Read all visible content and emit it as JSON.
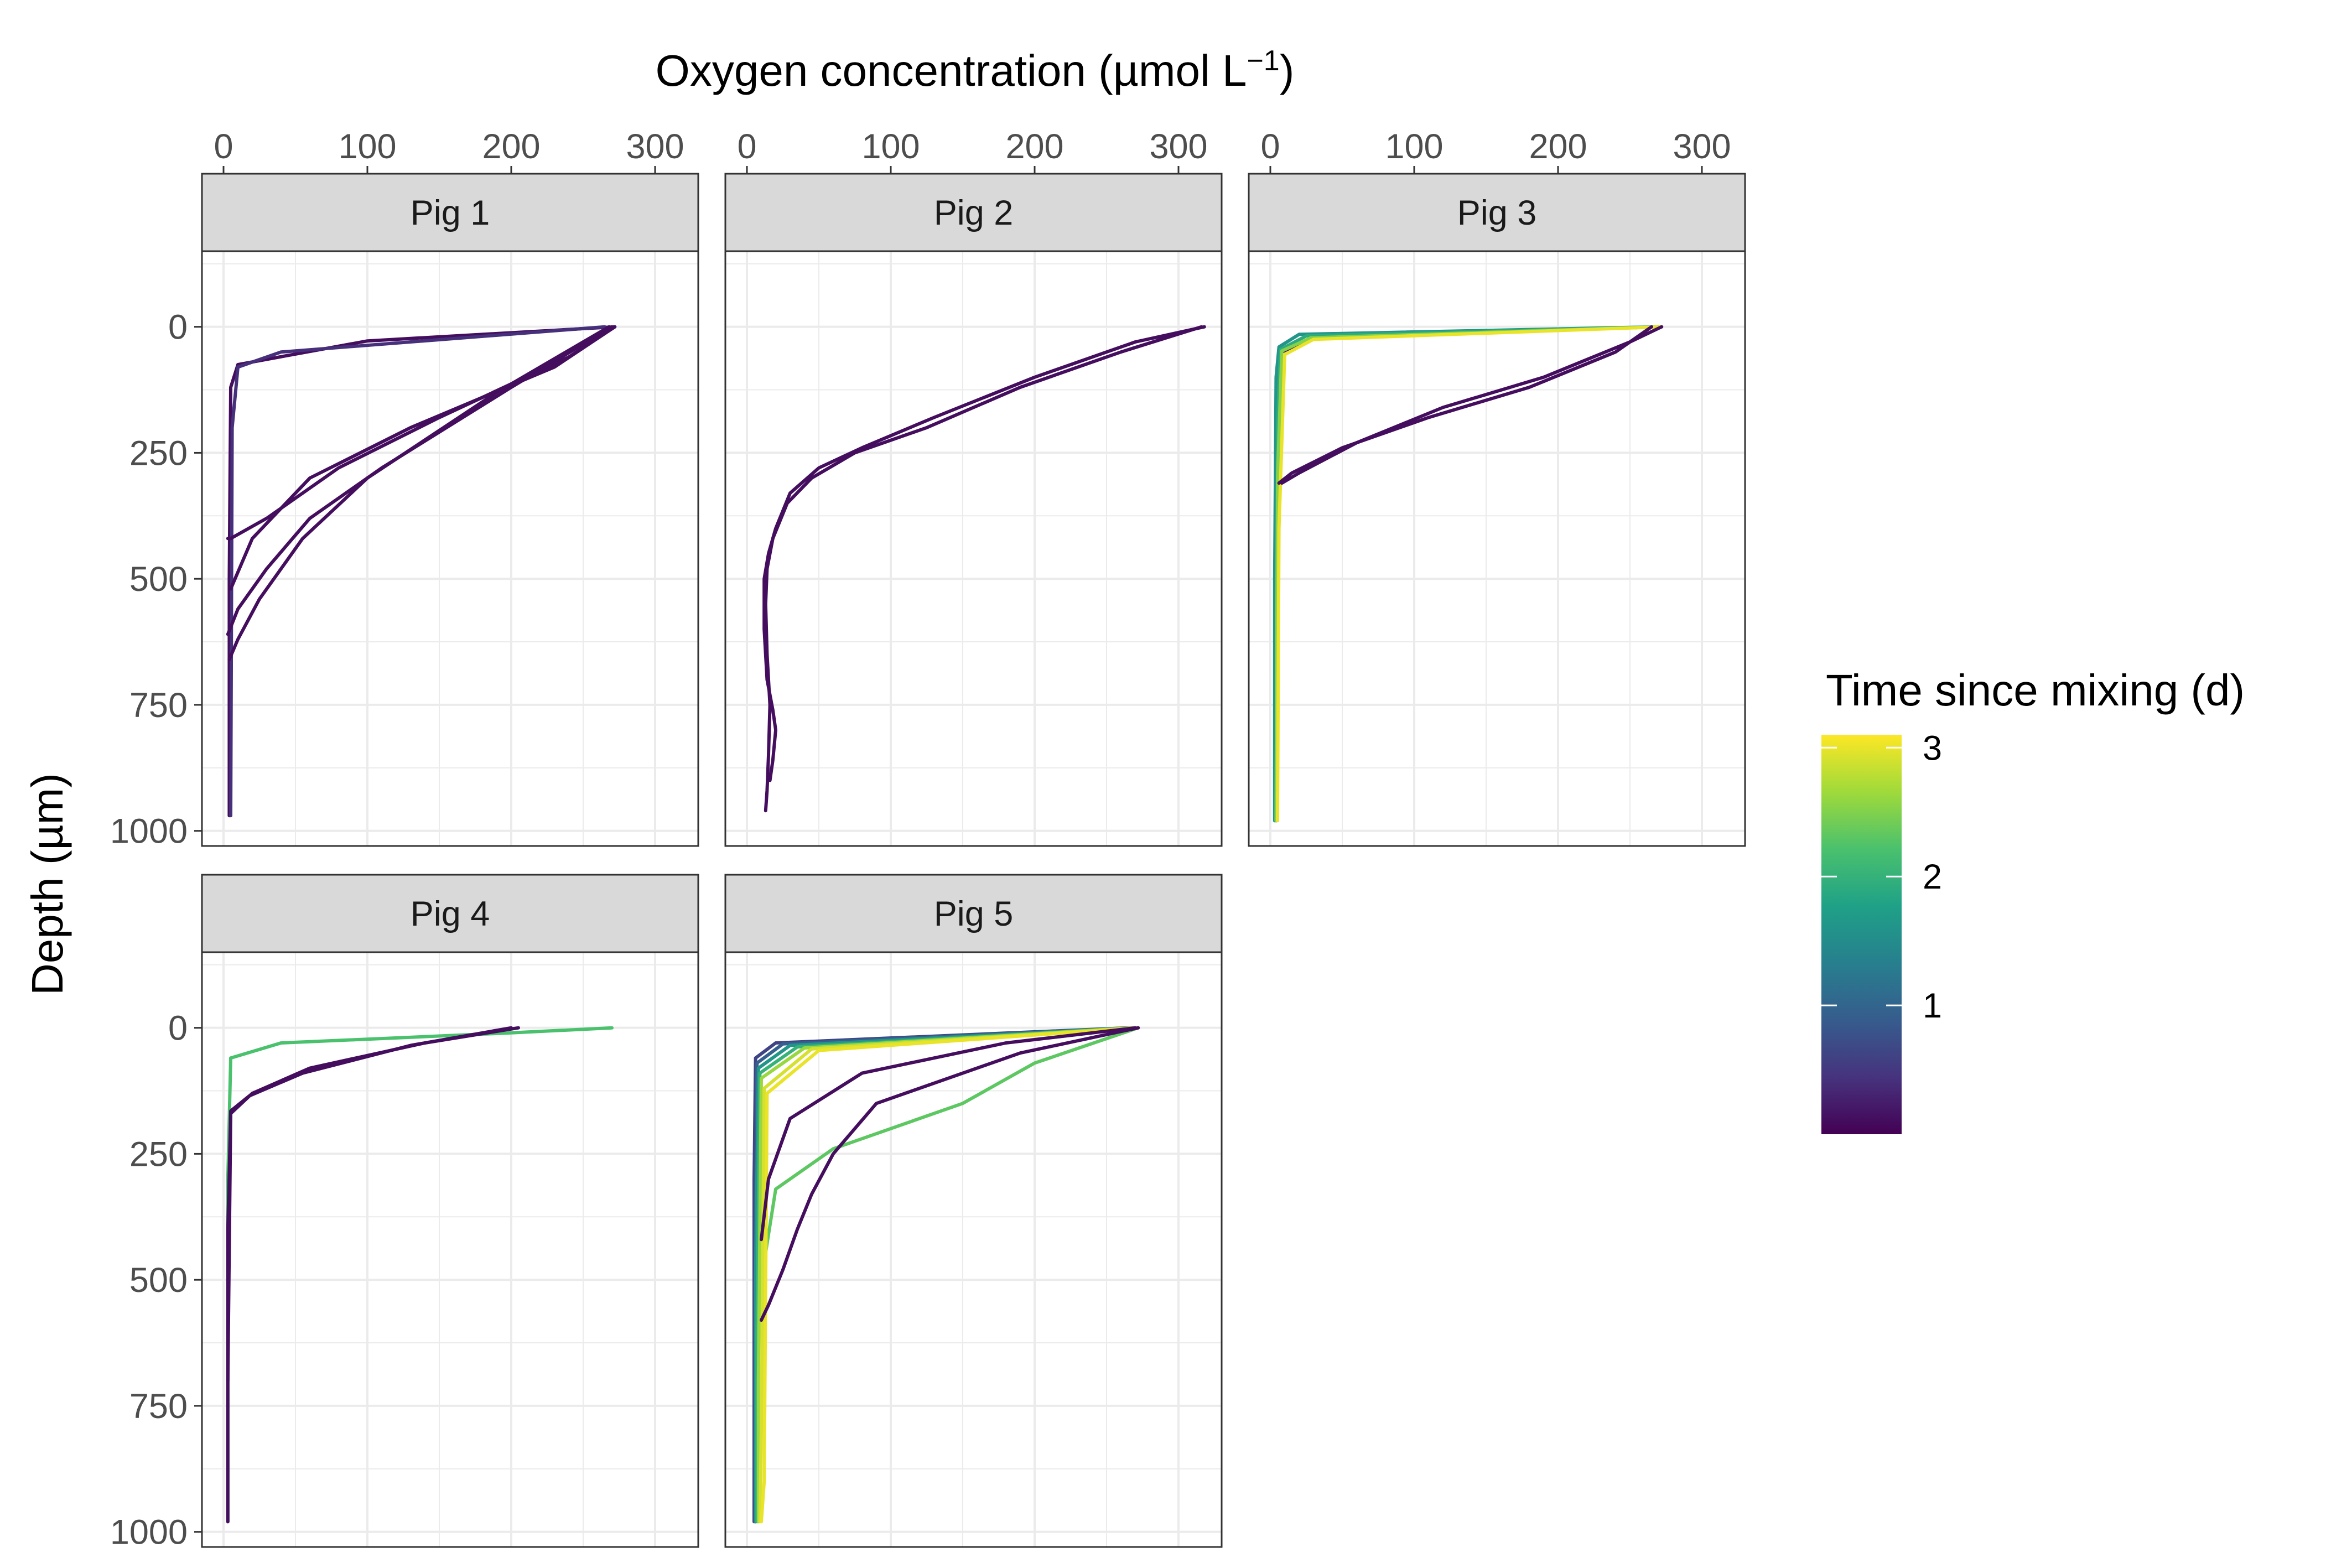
{
  "chart_data": {
    "type": "line",
    "xlabel": "Oxygen concentration (µmol L",
    "xlabel_superscript": "−1",
    "xlabel_suffix": ")",
    "ylabel": "Depth (µm)",
    "xlim": [
      -15,
      330
    ],
    "ylim": [
      1030,
      -150
    ],
    "y_reversed": true,
    "x_axis_position": "top",
    "x_ticks": [
      0,
      100,
      200,
      300
    ],
    "y_ticks": [
      0,
      250,
      500,
      750,
      1000
    ],
    "grid": true,
    "legend": {
      "title": "Time since mixing (d)",
      "type": "colorbar",
      "placement": "right",
      "min": 0,
      "max": 3.1,
      "ticks": [
        1,
        2,
        3
      ],
      "colors": [
        "#440154",
        "#46337E",
        "#365C8D",
        "#277F8E",
        "#1FA187",
        "#4AC16D",
        "#9FDA3A",
        "#FDE725"
      ]
    },
    "colors": {
      "purple": "#440154",
      "blue": "#3B528B",
      "teal": "#21908C",
      "green": "#35B779",
      "yellow": "#FDE725",
      "strip_fill": "#d9d9d9",
      "grid": "#ebebeb"
    },
    "panels": [
      {
        "name": "Pig 1",
        "series": [
          {
            "t": 0.1,
            "x": [
              272,
              100,
              10,
              5,
              4,
              4
            ],
            "y": [
              0,
              28,
              75,
              120,
              500,
              970
            ]
          },
          {
            "t": 0.4,
            "x": [
              265,
              40,
              10,
              6,
              5
            ],
            "y": [
              0,
              50,
              80,
              200,
              970
            ]
          },
          {
            "t": 0.1,
            "x": [
              272,
              240,
              150,
              80,
              30,
              5,
              3
            ],
            "y": [
              0,
              60,
              180,
              280,
              380,
              420,
              420
            ]
          },
          {
            "t": 0.1,
            "x": [
              272,
              230,
              130,
              60,
              20,
              5
            ],
            "y": [
              0,
              80,
              200,
              300,
              420,
              520
            ]
          },
          {
            "t": 0.1,
            "x": [
              270,
              200,
              110,
              60,
              30,
              10,
              3
            ],
            "y": [
              0,
              120,
              280,
              380,
              480,
              560,
              610
            ]
          },
          {
            "t": 0.1,
            "x": [
              268,
              190,
              100,
              55,
              25,
              10,
              4
            ],
            "y": [
              0,
              130,
              300,
              420,
              540,
              620,
              660
            ]
          }
        ]
      },
      {
        "name": "Pig 2",
        "series": [
          {
            "t": 0.1,
            "x": [
              318,
              270,
              200,
              130,
              80,
              50,
              30,
              20,
              15,
              12,
              12,
              14,
              18,
              20,
              18,
              16
            ],
            "y": [
              0,
              30,
              100,
              180,
              240,
              280,
              330,
              400,
              450,
              500,
              600,
              700,
              760,
              800,
              860,
              900
            ]
          },
          {
            "t": 0.1,
            "x": [
              316,
              260,
              190,
              125,
              75,
              45,
              28,
              18,
              14,
              13,
              14,
              16,
              15,
              14,
              13
            ],
            "y": [
              0,
              50,
              120,
              200,
              250,
              300,
              350,
              420,
              480,
              550,
              650,
              750,
              850,
              920,
              960
            ]
          }
        ]
      },
      {
        "name": "Pig 3",
        "series": [
          {
            "t": 0.1,
            "x": [
              272,
              30,
              8,
              5,
              4,
              4
            ],
            "y": [
              0,
              20,
              50,
              100,
              500,
              980
            ]
          },
          {
            "t": 1.6,
            "x": [
              270,
              20,
              6,
              4,
              3,
              3
            ],
            "y": [
              0,
              15,
              40,
              100,
              500,
              980
            ]
          },
          {
            "t": 1.9,
            "x": [
              270,
              25,
              7,
              5,
              4
            ],
            "y": [
              0,
              18,
              45,
              200,
              980
            ]
          },
          {
            "t": 2.5,
            "x": [
              272,
              28,
              8,
              5,
              4
            ],
            "y": [
              0,
              22,
              48,
              300,
              980
            ]
          },
          {
            "t": 3.0,
            "x": [
              272,
              30,
              10,
              6,
              5
            ],
            "y": [
              0,
              25,
              55,
              400,
              980
            ]
          },
          {
            "t": 0.1,
            "x": [
              272,
              250,
              190,
              120,
              60,
              20,
              8
            ],
            "y": [
              0,
              30,
              100,
              160,
              230,
              290,
              310
            ]
          },
          {
            "t": 0.1,
            "x": [
              265,
              240,
              180,
              110,
              50,
              15,
              6
            ],
            "y": [
              0,
              50,
              120,
              180,
              240,
              290,
              310
            ]
          }
        ]
      },
      {
        "name": "Pig 4",
        "series": [
          {
            "t": 2.2,
            "x": [
              270,
              200,
              40,
              5,
              3,
              3,
              3
            ],
            "y": [
              0,
              10,
              30,
              60,
              300,
              700,
              980
            ]
          },
          {
            "t": 0.1,
            "x": [
              205,
              140,
              60,
              20,
              5,
              3,
              3
            ],
            "y": [
              0,
              30,
              80,
              130,
              170,
              400,
              980
            ]
          },
          {
            "t": 0.1,
            "x": [
              200,
              130,
              55,
              18,
              5,
              3
            ],
            "y": [
              0,
              35,
              90,
              135,
              165,
              700
            ]
          }
        ]
      },
      {
        "name": "Pig 5",
        "series": [
          {
            "t": 0.6,
            "x": [
              265,
              20,
              6,
              5,
              5
            ],
            "y": [
              0,
              30,
              60,
              300,
              980
            ]
          },
          {
            "t": 0.9,
            "x": [
              266,
              25,
              7,
              6,
              6
            ],
            "y": [
              0,
              32,
              70,
              400,
              980
            ]
          },
          {
            "t": 1.6,
            "x": [
              268,
              30,
              8,
              6,
              6
            ],
            "y": [
              0,
              35,
              80,
              500,
              980
            ]
          },
          {
            "t": 2.0,
            "x": [
              270,
              35,
              9,
              7,
              7
            ],
            "y": [
              0,
              38,
              90,
              600,
              980
            ]
          },
          {
            "t": 2.3,
            "x": [
              272,
              200,
              150,
              60,
              20,
              10
            ],
            "y": [
              0,
              70,
              150,
              240,
              320,
              500
            ]
          },
          {
            "t": 2.6,
            "x": [
              268,
              40,
              10,
              8,
              8
            ],
            "y": [
              0,
              40,
              100,
              700,
              980
            ]
          },
          {
            "t": 2.9,
            "x": [
              272,
              45,
              12,
              10,
              9
            ],
            "y": [
              0,
              42,
              120,
              800,
              980
            ]
          },
          {
            "t": 3.0,
            "x": [
              270,
              50,
              14,
              12,
              10
            ],
            "y": [
              0,
              45,
              130,
              900,
              980
            ]
          },
          {
            "t": 0.1,
            "x": [
              270,
              180,
              80,
              30,
              15,
              10
            ],
            "y": [
              0,
              30,
              90,
              180,
              300,
              420
            ]
          },
          {
            "t": 0.1,
            "x": [
              272,
              190,
              90,
              60,
              45,
              35,
              25,
              15,
              10
            ],
            "y": [
              0,
              50,
              150,
              250,
              330,
              400,
              480,
              550,
              580
            ]
          }
        ]
      }
    ]
  }
}
